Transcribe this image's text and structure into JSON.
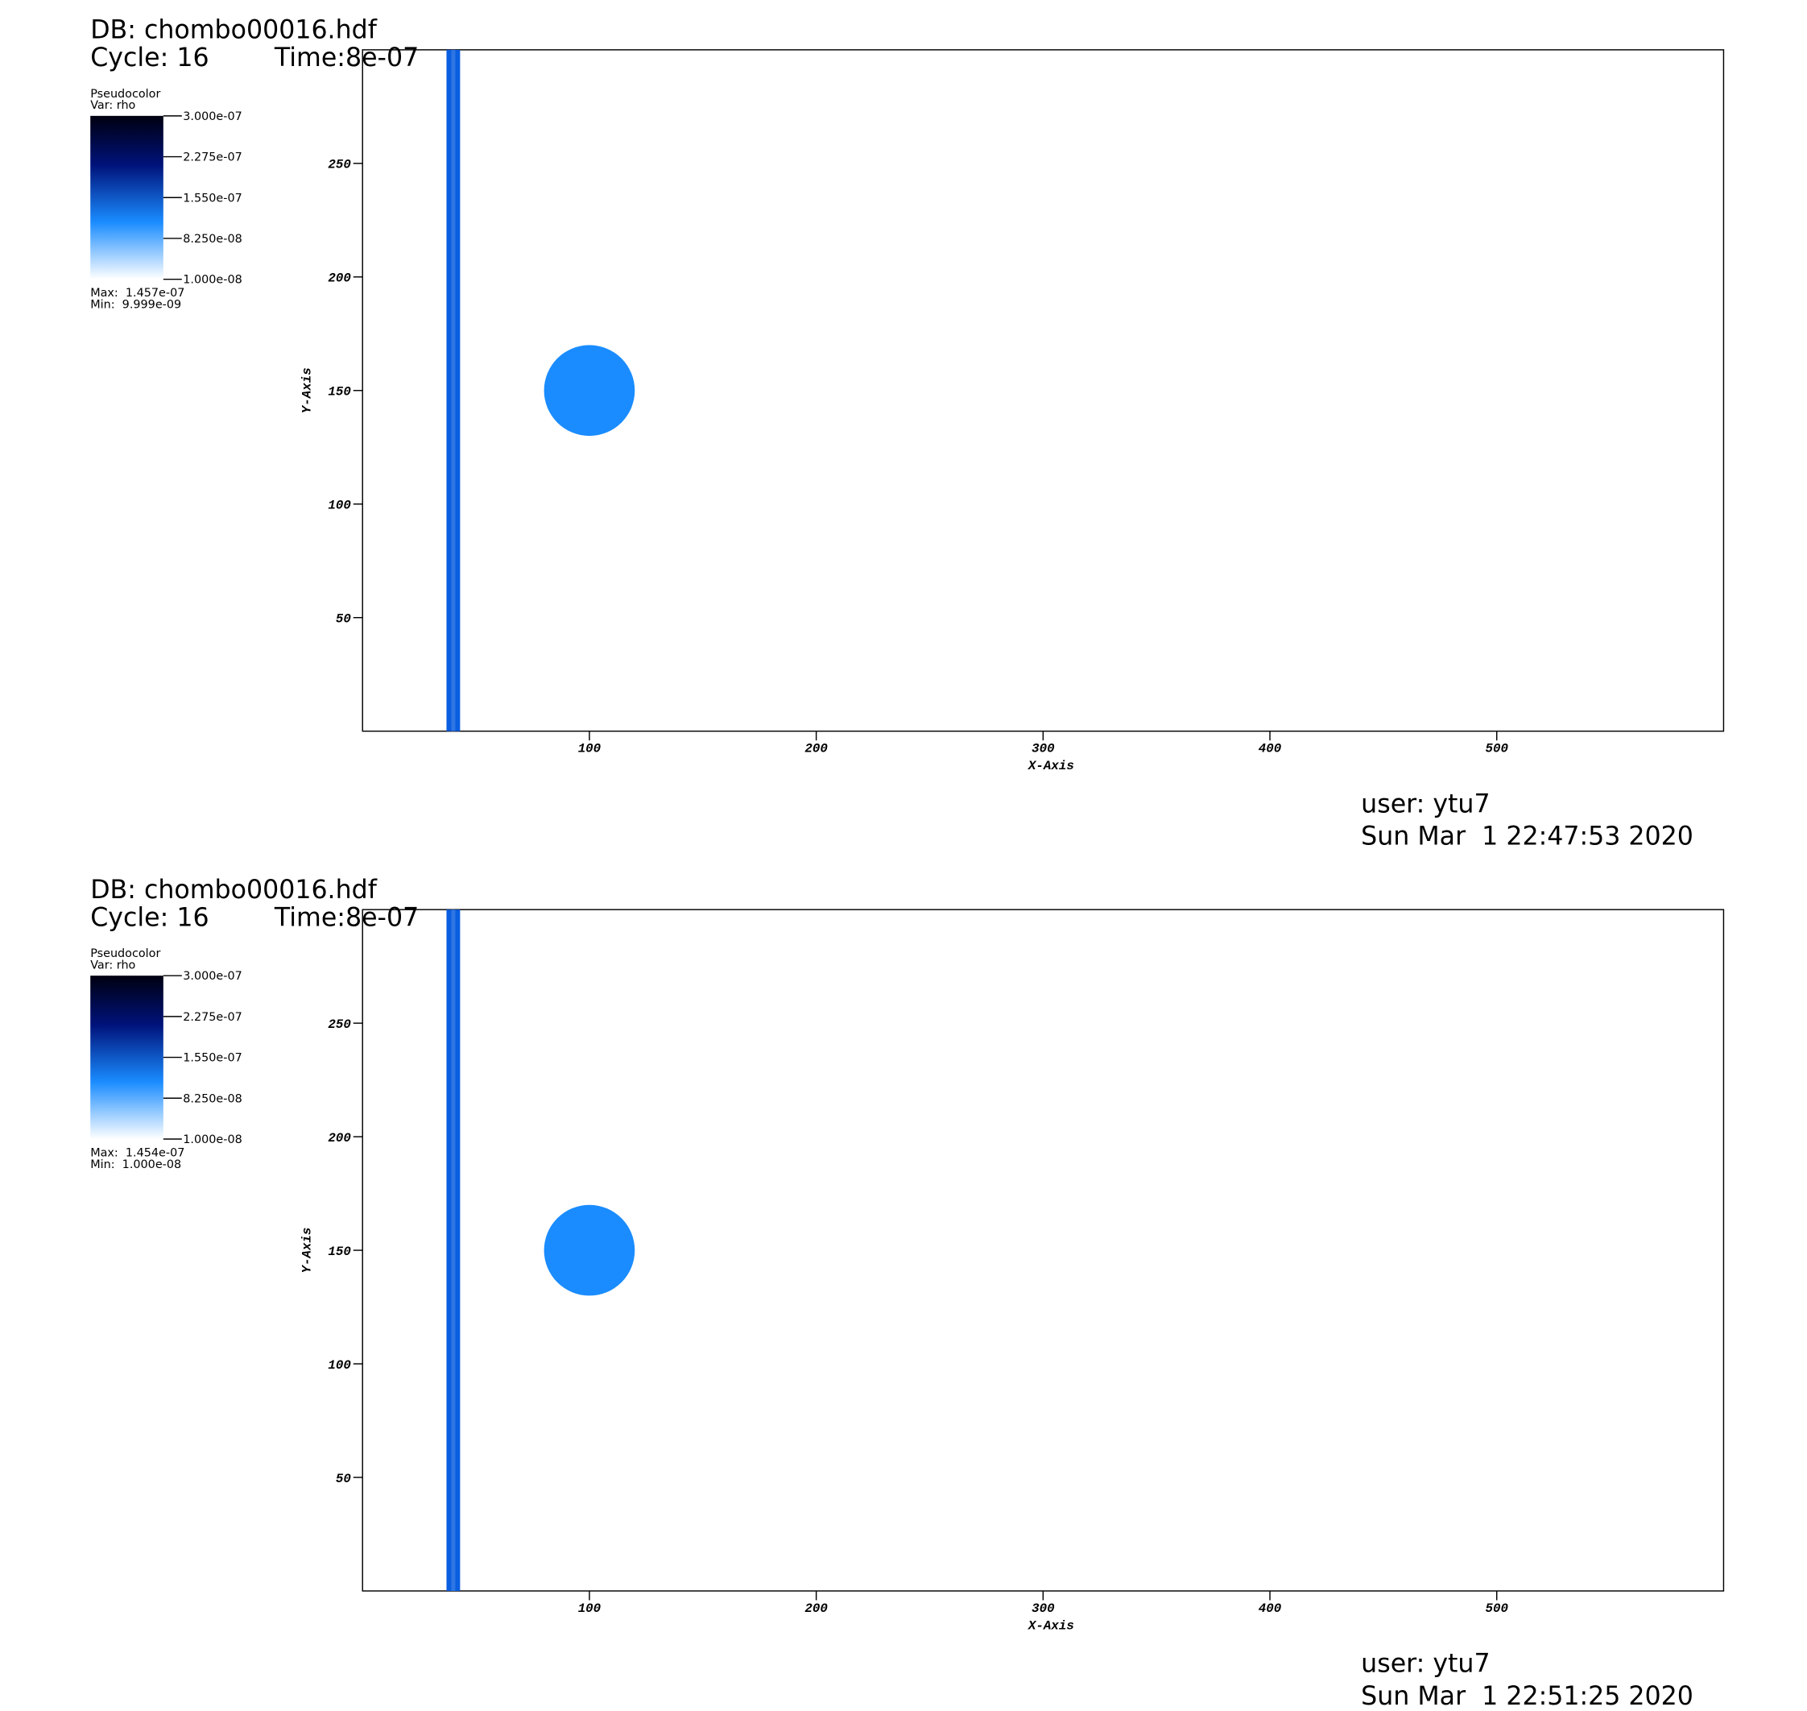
{
  "chart_data": [
    {
      "type": "pseudocolor",
      "db": "DB: chombo00016.hdf",
      "cycle": "Cycle: 16",
      "time": "Time:8e-07",
      "legend_title": "Pseudocolor",
      "legend_var": "Var: rho",
      "clim": [
        1e-08,
        3e-07
      ],
      "cticks": [
        {
          "value": 3e-07,
          "label": "3.000e-07"
        },
        {
          "value": 2.275e-07,
          "label": "2.275e-07"
        },
        {
          "value": 1.55e-07,
          "label": "1.550e-07"
        },
        {
          "value": 8.25e-08,
          "label": "8.250e-08"
        },
        {
          "value": 1e-08,
          "label": "1.000e-08"
        }
      ],
      "max": "Max:  1.457e-07",
      "min": "Min:  9.999e-09",
      "xlabel": "X-Axis",
      "ylabel": "Y-Axis",
      "xlim": [
        0,
        600
      ],
      "ylim": [
        0,
        300
      ],
      "xticks": [
        100,
        200,
        300,
        400,
        500
      ],
      "yticks": [
        50,
        100,
        150,
        200,
        250
      ],
      "band": {
        "x": [
          37,
          43
        ],
        "color": "#0a5ee0"
      },
      "circle": {
        "x": 100,
        "y": 150,
        "r": 20,
        "color": "#1a8cff"
      },
      "user": "user: ytu7",
      "date": "Sun Mar  1 22:47:53 2020"
    },
    {
      "type": "pseudocolor",
      "db": "DB: chombo00016.hdf",
      "cycle": "Cycle: 16",
      "time": "Time:8e-07",
      "legend_title": "Pseudocolor",
      "legend_var": "Var: rho",
      "clim": [
        1e-08,
        3e-07
      ],
      "cticks": [
        {
          "value": 3e-07,
          "label": "3.000e-07"
        },
        {
          "value": 2.275e-07,
          "label": "2.275e-07"
        },
        {
          "value": 1.55e-07,
          "label": "1.550e-07"
        },
        {
          "value": 8.25e-08,
          "label": "8.250e-08"
        },
        {
          "value": 1e-08,
          "label": "1.000e-08"
        }
      ],
      "max": "Max:  1.454e-07",
      "min": "Min:  1.000e-08",
      "xlabel": "X-Axis",
      "ylabel": "Y-Axis",
      "xlim": [
        0,
        600
      ],
      "ylim": [
        0,
        300
      ],
      "xticks": [
        100,
        200,
        300,
        400,
        500
      ],
      "yticks": [
        50,
        100,
        150,
        200,
        250
      ],
      "band": {
        "x": [
          37,
          43
        ],
        "color": "#0a5ee0"
      },
      "circle": {
        "x": 100,
        "y": 150,
        "r": 20,
        "color": "#1a8cff"
      },
      "user": "user: ytu7",
      "date": "Sun Mar  1 22:51:25 2020"
    }
  ]
}
